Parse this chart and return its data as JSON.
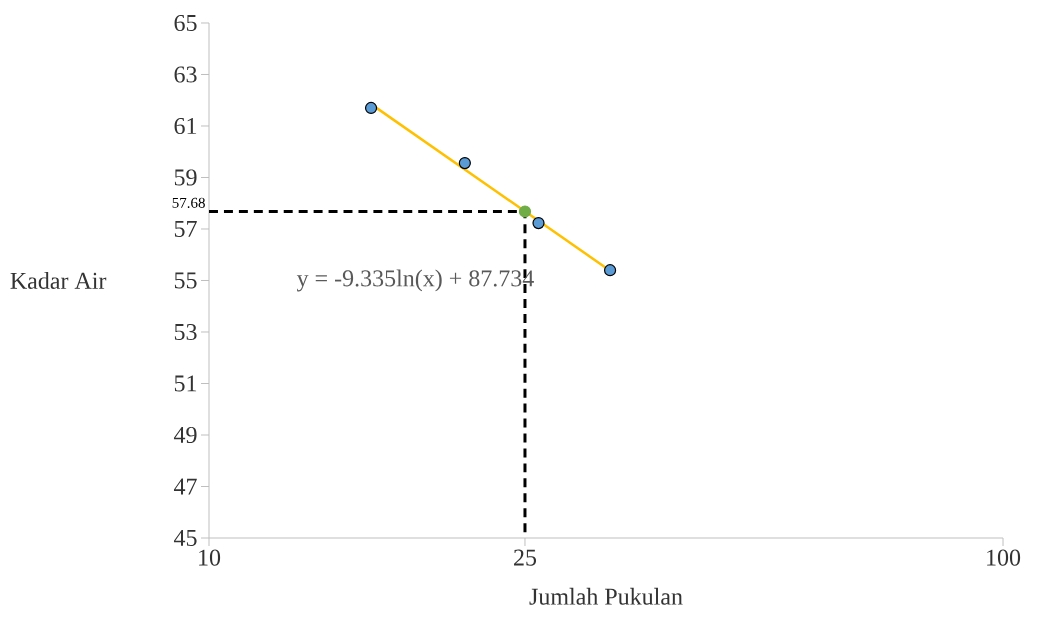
{
  "chart_data": {
    "type": "scatter",
    "xlabel": "Jumlah Pukulan",
    "ylabel": "Kadar Air",
    "log": "x",
    "xlim": [
      10,
      100
    ],
    "xticks": [
      10,
      25,
      100
    ],
    "ylim": [
      45,
      65
    ],
    "yticks": [
      45,
      47,
      49,
      51,
      53,
      55,
      57,
      59,
      61,
      63,
      65
    ],
    "grid": false,
    "series": [
      {
        "color": "#5b9bd5",
        "marker": "circle",
        "x": [
          16,
          21,
          26,
          32
        ],
        "values": [
          61.7,
          59.56,
          57.23,
          55.4
        ]
      },
      {
        "type": "line",
        "color": "#ffc000",
        "marker": "none",
        "line_style": "solid",
        "x": [
          16,
          32
        ],
        "values": [
          61.85,
          55.38
        ]
      },
      {
        "type": "scatter",
        "color": "#70ad47",
        "marker": "circle",
        "x": [
          25
        ],
        "values": [
          57.68
        ]
      },
      {
        "type": "line",
        "color": "#000000",
        "marker": "none",
        "line_style": "dashed",
        "x": [
          10,
          25,
          25
        ],
        "values": [
          57.68,
          57.68,
          45
        ]
      }
    ],
    "annotations": [
      {
        "text": "57.68",
        "x": 10,
        "y": 57.68
      },
      "y = -9.335ln(x) + 87.734"
    ]
  }
}
